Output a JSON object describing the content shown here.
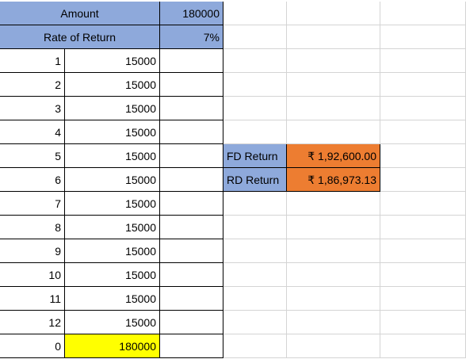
{
  "sheet": {
    "header": {
      "amount_label": "Amount",
      "amount_value": "180000",
      "rate_label": "Rate of Return",
      "rate_value": "7%"
    },
    "rows": [
      {
        "n": "1",
        "v": "15000"
      },
      {
        "n": "2",
        "v": "15000"
      },
      {
        "n": "3",
        "v": "15000"
      },
      {
        "n": "4",
        "v": "15000"
      },
      {
        "n": "5",
        "v": "15000"
      },
      {
        "n": "6",
        "v": "15000"
      },
      {
        "n": "7",
        "v": "15000"
      },
      {
        "n": "8",
        "v": "15000"
      },
      {
        "n": "9",
        "v": "15000"
      },
      {
        "n": "10",
        "v": "15000"
      },
      {
        "n": "11",
        "v": "15000"
      },
      {
        "n": "12",
        "v": "15000"
      }
    ],
    "total": {
      "n": "0",
      "v": "180000"
    },
    "summary": {
      "fd_label": "FD Return",
      "fd_value": "₹ 1,92,600.00",
      "rd_label": "RD Return",
      "rd_value": "₹ 1,86,973.13"
    },
    "colors": {
      "header_fill": "#8ea9db",
      "result_fill": "#ed7d31",
      "total_fill": "#ffff00"
    }
  }
}
